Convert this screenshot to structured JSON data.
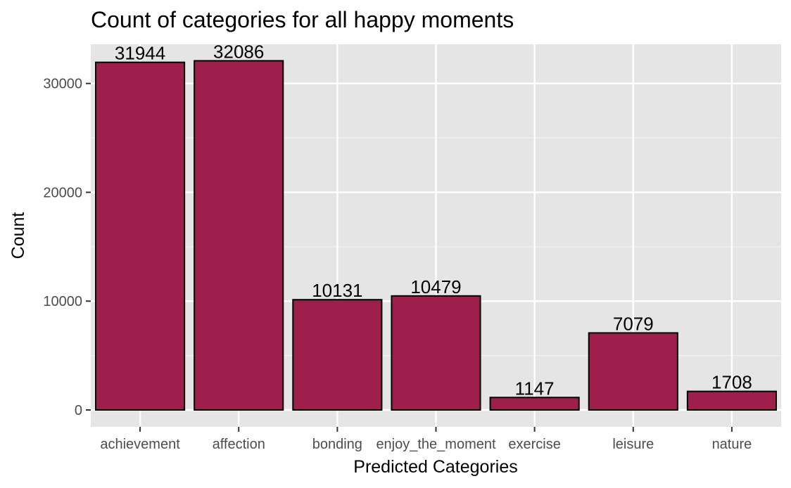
{
  "chart_data": {
    "type": "bar",
    "title": "Count of categories for all happy moments",
    "xlabel": "Predicted Categories",
    "ylabel": "Count",
    "categories": [
      "achievement",
      "affection",
      "bonding",
      "enjoy_the_moment",
      "exercise",
      "leisure",
      "nature"
    ],
    "values": [
      31944,
      32086,
      10131,
      10479,
      1147,
      7079,
      1708
    ],
    "data_labels": [
      "31944",
      "32086",
      "10131",
      "10479",
      "1147",
      "7079",
      "1708"
    ],
    "ylim": [
      -1550,
      33600
    ],
    "yticks": [
      0,
      10000,
      20000,
      30000
    ],
    "ytick_labels": [
      "0",
      "10000",
      "20000",
      "30000"
    ],
    "grid": true,
    "legend": "none",
    "colors": {
      "bar_fill": "#9e1f4b",
      "bar_stroke": "#000000",
      "panel_bg": "#e5e5e5",
      "grid_major": "#ffffff",
      "grid_minor": "#f2f2f2"
    }
  }
}
